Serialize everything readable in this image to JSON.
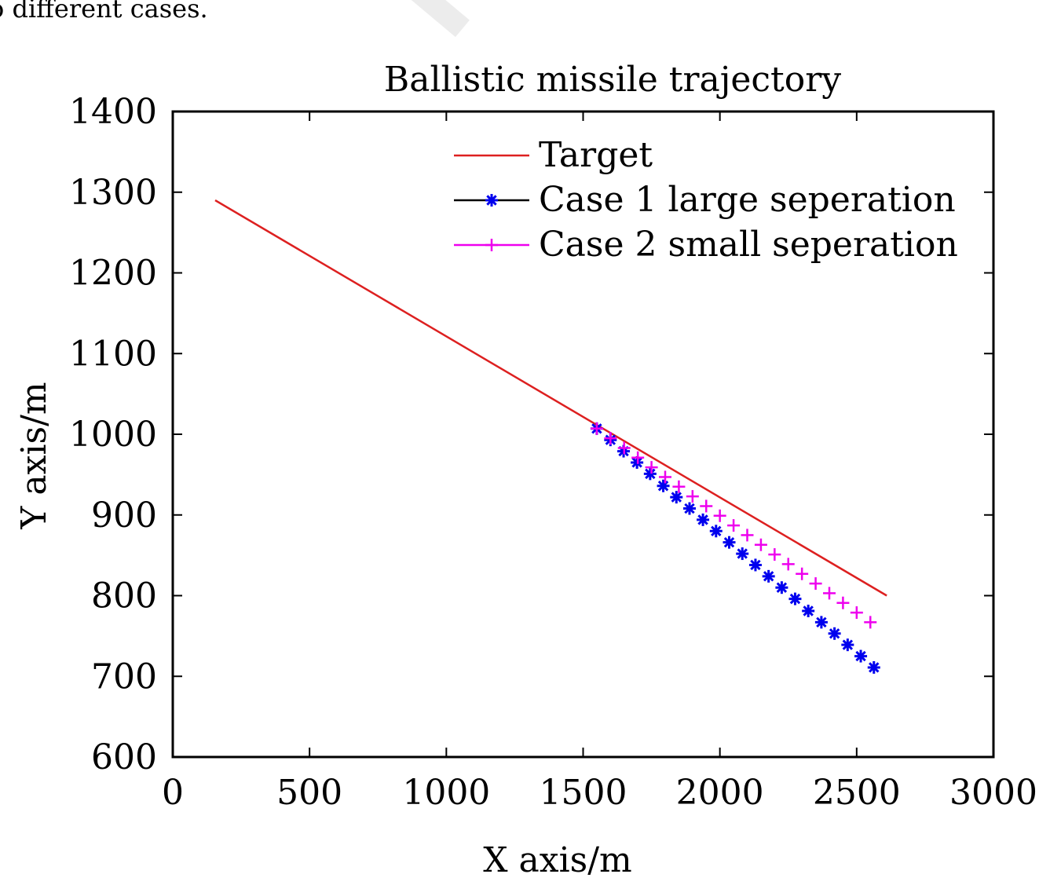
{
  "caption_fragment": "o different cases.",
  "chart_data": {
    "type": "line",
    "title": "Ballistic missile trajectory",
    "xlabel": "X axis/m",
    "ylabel": "Y axis/m",
    "xlim": [
      0,
      3000
    ],
    "ylim": [
      600,
      1400
    ],
    "xticks": [
      0,
      500,
      1000,
      1500,
      2000,
      2500,
      3000
    ],
    "yticks": [
      600,
      700,
      800,
      900,
      1000,
      1100,
      1200,
      1300,
      1400
    ],
    "grid": false,
    "legend_position": "top-right",
    "series": [
      {
        "name": "Target",
        "color": "#dd2020",
        "marker": "none",
        "x": [
          155,
          2610
        ],
        "y": [
          1290,
          800
        ]
      },
      {
        "name": "Case 1 large seperation",
        "color": "#0000ee",
        "marker": "asterisk",
        "legend_line_color": "#000000",
        "x": [
          1550,
          1600,
          1648,
          1697,
          1745,
          1793,
          1841,
          1889,
          1938,
          1986,
          2034,
          2082,
          2130,
          2178,
          2226,
          2275,
          2323,
          2371,
          2419,
          2467,
          2515,
          2563
        ],
        "y": [
          1007,
          993,
          979,
          965,
          951,
          936,
          922,
          908,
          894,
          880,
          866,
          852,
          838,
          824,
          810,
          796,
          781,
          767,
          753,
          739,
          725,
          711
        ]
      },
      {
        "name": "Case 2 small seperation",
        "color": "#ee00ee",
        "marker": "plus",
        "x": [
          1550,
          1600,
          1650,
          1700,
          1750,
          1800,
          1850,
          1900,
          1950,
          2000,
          2050,
          2100,
          2150,
          2200,
          2250,
          2300,
          2350,
          2400,
          2450,
          2500,
          2550
        ],
        "y": [
          1007,
          995,
          983,
          971,
          959,
          947,
          935,
          923,
          911,
          899,
          887,
          875,
          863,
          851,
          839,
          827,
          815,
          803,
          791,
          779,
          767
        ]
      }
    ]
  }
}
